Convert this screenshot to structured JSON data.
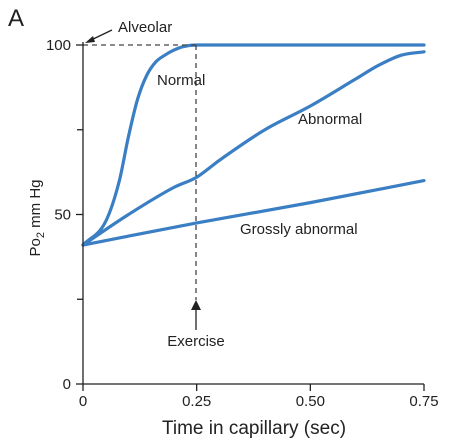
{
  "panel_label": "A",
  "chart_data": {
    "type": "line",
    "title": "",
    "xlabel": "Time in capillary (sec)",
    "ylabel": {
      "main": "Po",
      "sub": "2",
      "unit": " mm Hg"
    },
    "xlim": [
      0,
      0.75
    ],
    "ylim": [
      0,
      100
    ],
    "x_ticks": [
      0,
      0.25,
      0.5,
      0.75
    ],
    "x_tick_labels": [
      "0",
      "0.25",
      "0.50",
      "0.75"
    ],
    "y_ticks": [
      0,
      50,
      100
    ],
    "y_tick_labels": [
      "0",
      "50",
      "100"
    ],
    "y_minor_ticks": [
      25,
      75
    ],
    "grid": false,
    "legend": "none",
    "line_color": "#3a7ec4",
    "series": [
      {
        "name": "Normal",
        "x": [
          0,
          0.05,
          0.08,
          0.1,
          0.12,
          0.14,
          0.16,
          0.18,
          0.2,
          0.22,
          0.25,
          0.27,
          0.3,
          0.75
        ],
        "y": [
          41,
          48,
          60,
          73,
          84,
          91,
          95,
          97,
          98.5,
          99.5,
          100,
          100,
          100,
          100
        ]
      },
      {
        "name": "Abnormal",
        "x": [
          0,
          0.1,
          0.2,
          0.25,
          0.3,
          0.4,
          0.5,
          0.6,
          0.65,
          0.7,
          0.75
        ],
        "y": [
          41,
          50,
          58,
          61,
          66,
          75,
          82,
          90,
          94,
          97,
          98
        ]
      },
      {
        "name": "Grossly abnormal",
        "x": [
          0,
          0.25,
          0.5,
          0.75
        ],
        "y": [
          41,
          47.5,
          53.5,
          60
        ]
      }
    ],
    "annotations": [
      {
        "text": "Alveolar",
        "x": 0,
        "y": 100
      },
      {
        "text": "Exercise",
        "x": 0.25,
        "y": 25
      }
    ]
  }
}
